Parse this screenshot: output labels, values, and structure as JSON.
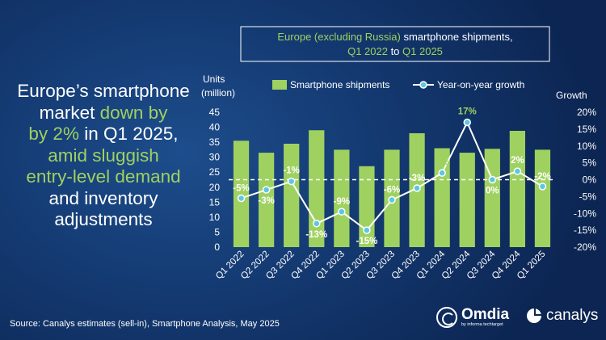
{
  "headline": {
    "line1": "Europe’s smartphone",
    "line2a": "market ",
    "line2b": "down by",
    "line3a": "by 2%",
    "line3b": " in Q1 2025,",
    "line4": "amid sluggish",
    "line5": "entry-level demand",
    "line6": "and inventory",
    "line7": "adjustments"
  },
  "source": "Source: Canalys estimates (sell-in), Smartphone Analysis, May 2025",
  "logos": {
    "omdia_name": "Omdia",
    "omdia_sub": "by informa techtarget",
    "canalys_name": "canalys"
  },
  "colors": {
    "bar": "#9fd160",
    "line": "#ffffff",
    "marker": "#5bc8e0",
    "highlight": "#9fd160",
    "title_accent": "#9fd160",
    "title_box_border": "#ffffff"
  },
  "chart_data": {
    "type": "bar",
    "title_line1_a": "Europe (excluding Russia)",
    "title_line1_b": " smartphone shipments,",
    "title_line2_a": "Q1 2022",
    "title_line2_b": " to ",
    "title_line2_c": "Q1 2025",
    "categories": [
      "Q1 2022",
      "Q2 2022",
      "Q3 2022",
      "Q4 2022",
      "Q1 2023",
      "Q2 2023",
      "Q3 2023",
      "Q4 2023",
      "Q1 2024",
      "Q2 2024",
      "Q3 2024",
      "Q4 2024",
      "Q1 2025"
    ],
    "y_left_label_line1": "Units",
    "y_left_label_line2": "(million)",
    "y_right_label": "Growth",
    "ylim_left": [
      0,
      45
    ],
    "yticks_left": [
      "0",
      "5",
      "10",
      "15",
      "20",
      "25",
      "30",
      "35",
      "40",
      "45"
    ],
    "ylim_right": [
      -20,
      20
    ],
    "yticks_right": [
      "-20%",
      "-15%",
      "-10%",
      "-5%",
      "0%",
      "5%",
      "10%",
      "15%",
      "20%"
    ],
    "legend": {
      "position": "top",
      "bar_label": "Smartphone shipments",
      "line_label": "Year-on-year growth"
    },
    "series": [
      {
        "name": "Smartphone shipments",
        "kind": "bar",
        "axis": "left",
        "values": [
          35.5,
          31.5,
          34.5,
          39,
          32.5,
          27,
          32.5,
          38,
          33,
          31.5,
          32.8,
          38.8,
          32.5
        ]
      },
      {
        "name": "Year-on-year growth",
        "kind": "line",
        "axis": "right",
        "values": [
          -5.5,
          -3,
          -0.5,
          -13,
          -9.5,
          -15,
          -6,
          -2.5,
          2,
          17,
          0,
          2.5,
          -2
        ],
        "labels": [
          "-5%",
          "-3%",
          "-1%",
          "-13%",
          "-9%",
          "-15%",
          "-6%",
          "-3%",
          "2%",
          "17%",
          "0%",
          "2%",
          "-2%"
        ]
      }
    ],
    "zero_line": "dashed",
    "grid": false
  }
}
